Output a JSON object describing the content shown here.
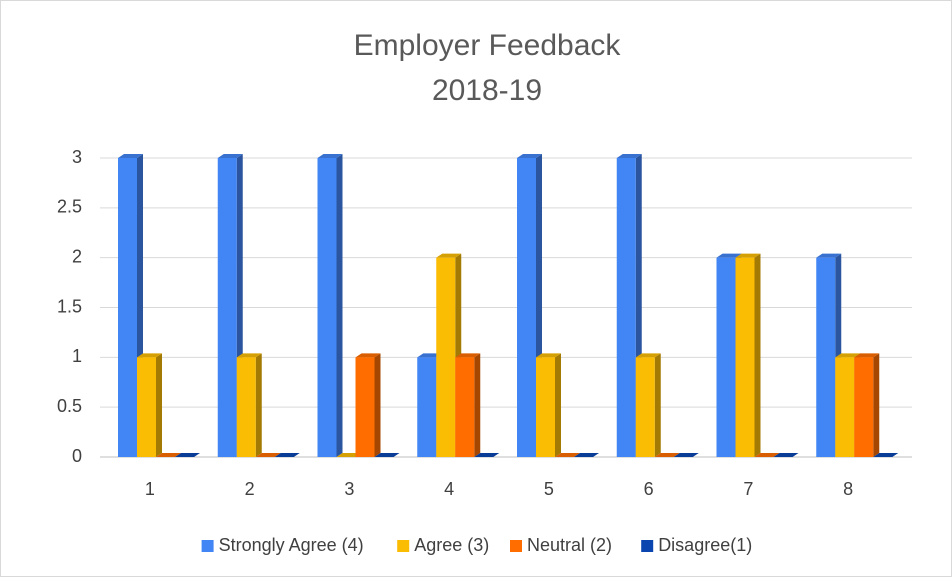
{
  "chart_data": {
    "type": "bar3d",
    "title": "Employer Feedback",
    "subtitle": "2018-19",
    "categories": [
      "1",
      "2",
      "3",
      "4",
      "5",
      "6",
      "7",
      "8"
    ],
    "series": [
      {
        "name": "Strongly Agree (4)",
        "color": "#4285f4",
        "values": [
          3,
          3,
          3,
          1,
          3,
          3,
          2,
          2
        ]
      },
      {
        "name": "Agree (3)",
        "color": "#fbbc04",
        "values": [
          1,
          1,
          0,
          2,
          1,
          1,
          2,
          1
        ]
      },
      {
        "name": "Neutral (2)",
        "color": "#ff6d01",
        "values": [
          0,
          0,
          1,
          1,
          0,
          0,
          0,
          1
        ]
      },
      {
        "name": "Disagree(1)",
        "color": "#0b46b0",
        "values": [
          0,
          0,
          0,
          0,
          0,
          0,
          0,
          0
        ]
      }
    ],
    "ylim": [
      0,
      3
    ],
    "yticks": [
      0,
      0.5,
      1,
      1.5,
      2,
      2.5,
      3
    ],
    "grid": true,
    "legend": "bottom"
  }
}
